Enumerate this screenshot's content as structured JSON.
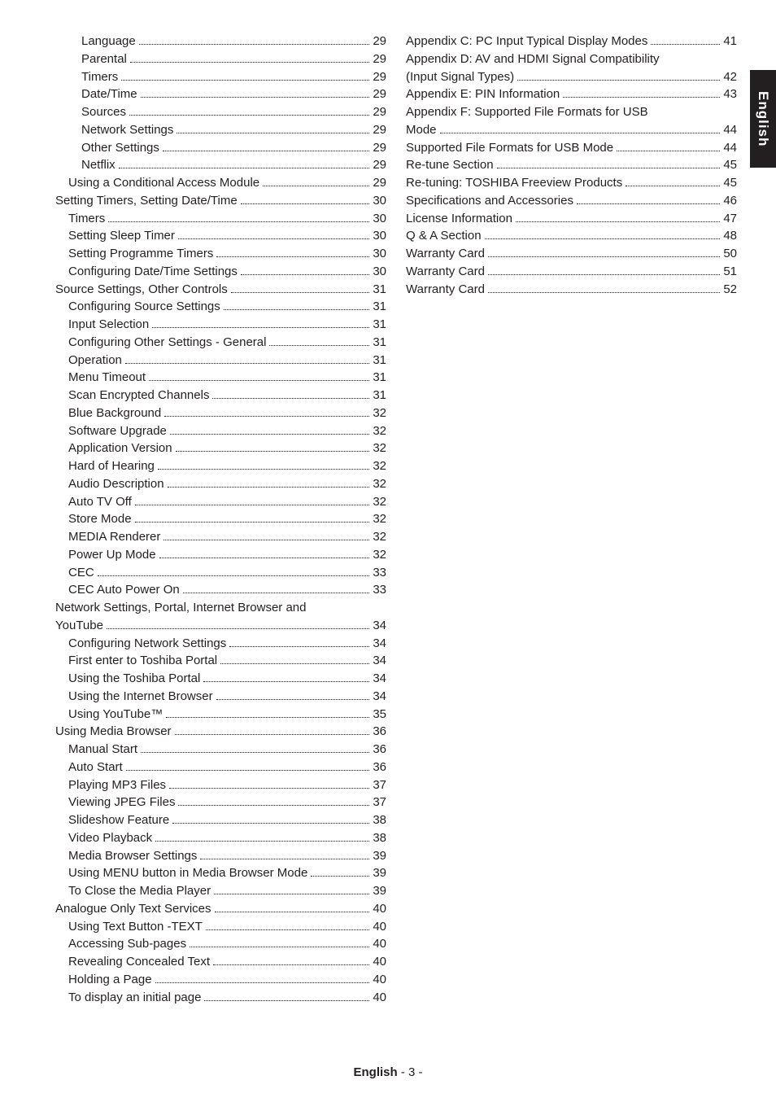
{
  "sideTab": "English",
  "footer": {
    "bold": "English",
    "rest": "  - 3 -"
  },
  "leftColumn": [
    {
      "indent": 2,
      "label": "Language",
      "page": "29"
    },
    {
      "indent": 2,
      "label": "Parental",
      "page": "29"
    },
    {
      "indent": 2,
      "label": "Timers",
      "page": "29"
    },
    {
      "indent": 2,
      "label": "Date/Time",
      "page": "29"
    },
    {
      "indent": 2,
      "label": "Sources",
      "page": "29"
    },
    {
      "indent": 2,
      "label": "Network Settings",
      "page": "29"
    },
    {
      "indent": 2,
      "label": "Other Settings",
      "page": "29"
    },
    {
      "indent": 2,
      "label": "Netflix",
      "page": "29"
    },
    {
      "indent": 1,
      "label": "Using a Conditional Access Module",
      "page": "29"
    },
    {
      "indent": 0,
      "label": "Setting Timers, Setting Date/Time",
      "page": "30"
    },
    {
      "indent": 1,
      "label": "Timers",
      "page": "30"
    },
    {
      "indent": 1,
      "label": "Setting Sleep Timer",
      "page": "30"
    },
    {
      "indent": 1,
      "label": "Setting Programme Timers",
      "page": "30"
    },
    {
      "indent": 1,
      "label": "Configuring Date/Time Settings",
      "page": "30"
    },
    {
      "indent": 0,
      "label": "Source Settings, Other Controls",
      "page": "31"
    },
    {
      "indent": 1,
      "label": "Configuring Source Settings",
      "page": "31"
    },
    {
      "indent": 1,
      "label": "Input Selection",
      "page": "31"
    },
    {
      "indent": 1,
      "label": "Configuring Other Settings - General",
      "page": "31"
    },
    {
      "indent": 1,
      "label": "Operation",
      "page": "31"
    },
    {
      "indent": 1,
      "label": "Menu Timeout",
      "page": "31"
    },
    {
      "indent": 1,
      "label": "Scan Encrypted Channels ",
      "page": "31"
    },
    {
      "indent": 1,
      "label": "Blue Background",
      "page": "32"
    },
    {
      "indent": 1,
      "label": "Software Upgrade",
      "page": "32"
    },
    {
      "indent": 1,
      "label": "Application Version",
      "page": "32"
    },
    {
      "indent": 1,
      "label": "Hard of Hearing",
      "page": "32"
    },
    {
      "indent": 1,
      "label": "Audio Description",
      "page": "32"
    },
    {
      "indent": 1,
      "label": "Auto TV Off",
      "page": "32"
    },
    {
      "indent": 1,
      "label": "Store Mode",
      "page": "32"
    },
    {
      "indent": 1,
      "label": "MEDIA Renderer",
      "page": "32"
    },
    {
      "indent": 1,
      "label": "Power Up Mode",
      "page": "32"
    },
    {
      "indent": 1,
      "label": "CEC",
      "page": "33"
    },
    {
      "indent": 1,
      "label": "CEC Auto Power On",
      "page": "33"
    },
    {
      "indent": 0,
      "label": "Network Settings, Portal, Internet Browser and",
      "wrap": "YouTube",
      "page": "34"
    },
    {
      "indent": 1,
      "label": "Configuring Network Settings",
      "page": "34"
    },
    {
      "indent": 1,
      "label": "First enter to Toshiba Portal",
      "page": "34"
    },
    {
      "indent": 1,
      "label": "Using the Toshiba Portal",
      "page": "34"
    },
    {
      "indent": 1,
      "label": "Using the Internet Browser",
      "page": "34"
    },
    {
      "indent": 1,
      "label": "Using YouTube™ ",
      "page": "35"
    },
    {
      "indent": 0,
      "label": "Using Media Browser",
      "page": "36"
    },
    {
      "indent": 1,
      "label": "Manual Start",
      "page": "36"
    },
    {
      "indent": 1,
      "label": "Auto Start",
      "page": "36"
    },
    {
      "indent": 1,
      "label": "Playing MP3 Files",
      "page": "37"
    },
    {
      "indent": 1,
      "label": "Viewing JPEG Files",
      "page": "37"
    },
    {
      "indent": 1,
      "label": "Slideshow Feature",
      "page": "38"
    },
    {
      "indent": 1,
      "label": "Video Playback",
      "page": "38"
    },
    {
      "indent": 1,
      "label": "Media Browser Settings",
      "page": "39"
    },
    {
      "indent": 1,
      "label": "Using MENU button in Media Browser Mode",
      "page": "39"
    },
    {
      "indent": 1,
      "label": "To Close the Media Player",
      "page": "39"
    },
    {
      "indent": 0,
      "label": "Analogue Only Text Services",
      "page": "40"
    },
    {
      "indent": 1,
      "label": "Using Text Button -TEXT",
      "page": "40"
    },
    {
      "indent": 1,
      "label": "Accessing Sub-pages",
      "page": "40"
    },
    {
      "indent": 1,
      "label": "Revealing Concealed Text",
      "page": "40"
    },
    {
      "indent": 1,
      "label": "Holding a Page",
      "page": "40"
    },
    {
      "indent": 1,
      "label": "To display an initial page",
      "page": "40"
    }
  ],
  "rightColumn": [
    {
      "indent": 0,
      "label": "Appendix C: PC Input Typical Display Modes",
      "page": "41"
    },
    {
      "indent": 0,
      "label": "Appendix D: AV and HDMI Signal Compatibility",
      "wrap": "(Input Signal Types)",
      "page": "42"
    },
    {
      "indent": 0,
      "label": "Appendix E: PIN Information ",
      "page": "43"
    },
    {
      "indent": 0,
      "label": "Appendix F: Supported File Formats for USB",
      "wrap": "Mode",
      "page": "44"
    },
    {
      "indent": 0,
      "label": "Supported File Formats for USB Mode",
      "page": "44"
    },
    {
      "indent": 0,
      "label": "Re-tune Section",
      "page": "45"
    },
    {
      "indent": 0,
      "label": "Re-tuning: TOSHIBA Freeview Products",
      "page": "45"
    },
    {
      "indent": 0,
      "label": "Specifications and Accessories",
      "page": "46"
    },
    {
      "indent": 0,
      "label": "License Information",
      "page": "47"
    },
    {
      "indent": 0,
      "label": "Q & A Section",
      "page": "48"
    },
    {
      "indent": 0,
      "label": "Warranty Card",
      "page": "50"
    },
    {
      "indent": 0,
      "label": "Warranty Card",
      "page": "51"
    },
    {
      "indent": 0,
      "label": "Warranty Card",
      "page": "52"
    }
  ]
}
